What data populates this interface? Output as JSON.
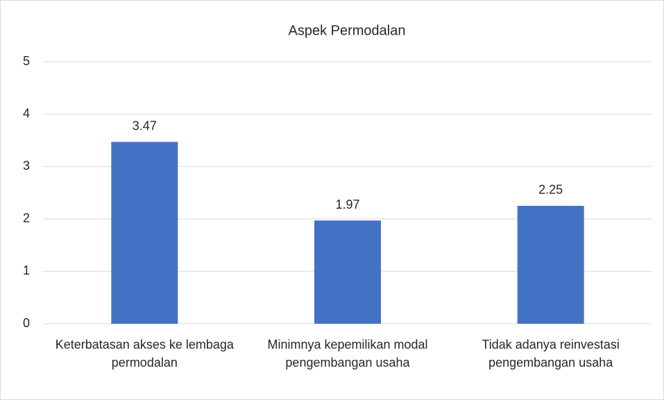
{
  "chart_data": {
    "type": "bar",
    "title": "Aspek Permodalan",
    "categories": [
      "Keterbatasan akses ke lembaga permodalan",
      "Minimnya kepemilikan modal pengembangan usaha",
      "Tidak adanya reinvestasi pengembangan usaha"
    ],
    "values": [
      3.47,
      1.97,
      2.25
    ],
    "color": "#4472c4",
    "ylim": [
      0,
      5
    ],
    "yticks": [
      0,
      1,
      2,
      3,
      4,
      5
    ],
    "grid": true
  }
}
